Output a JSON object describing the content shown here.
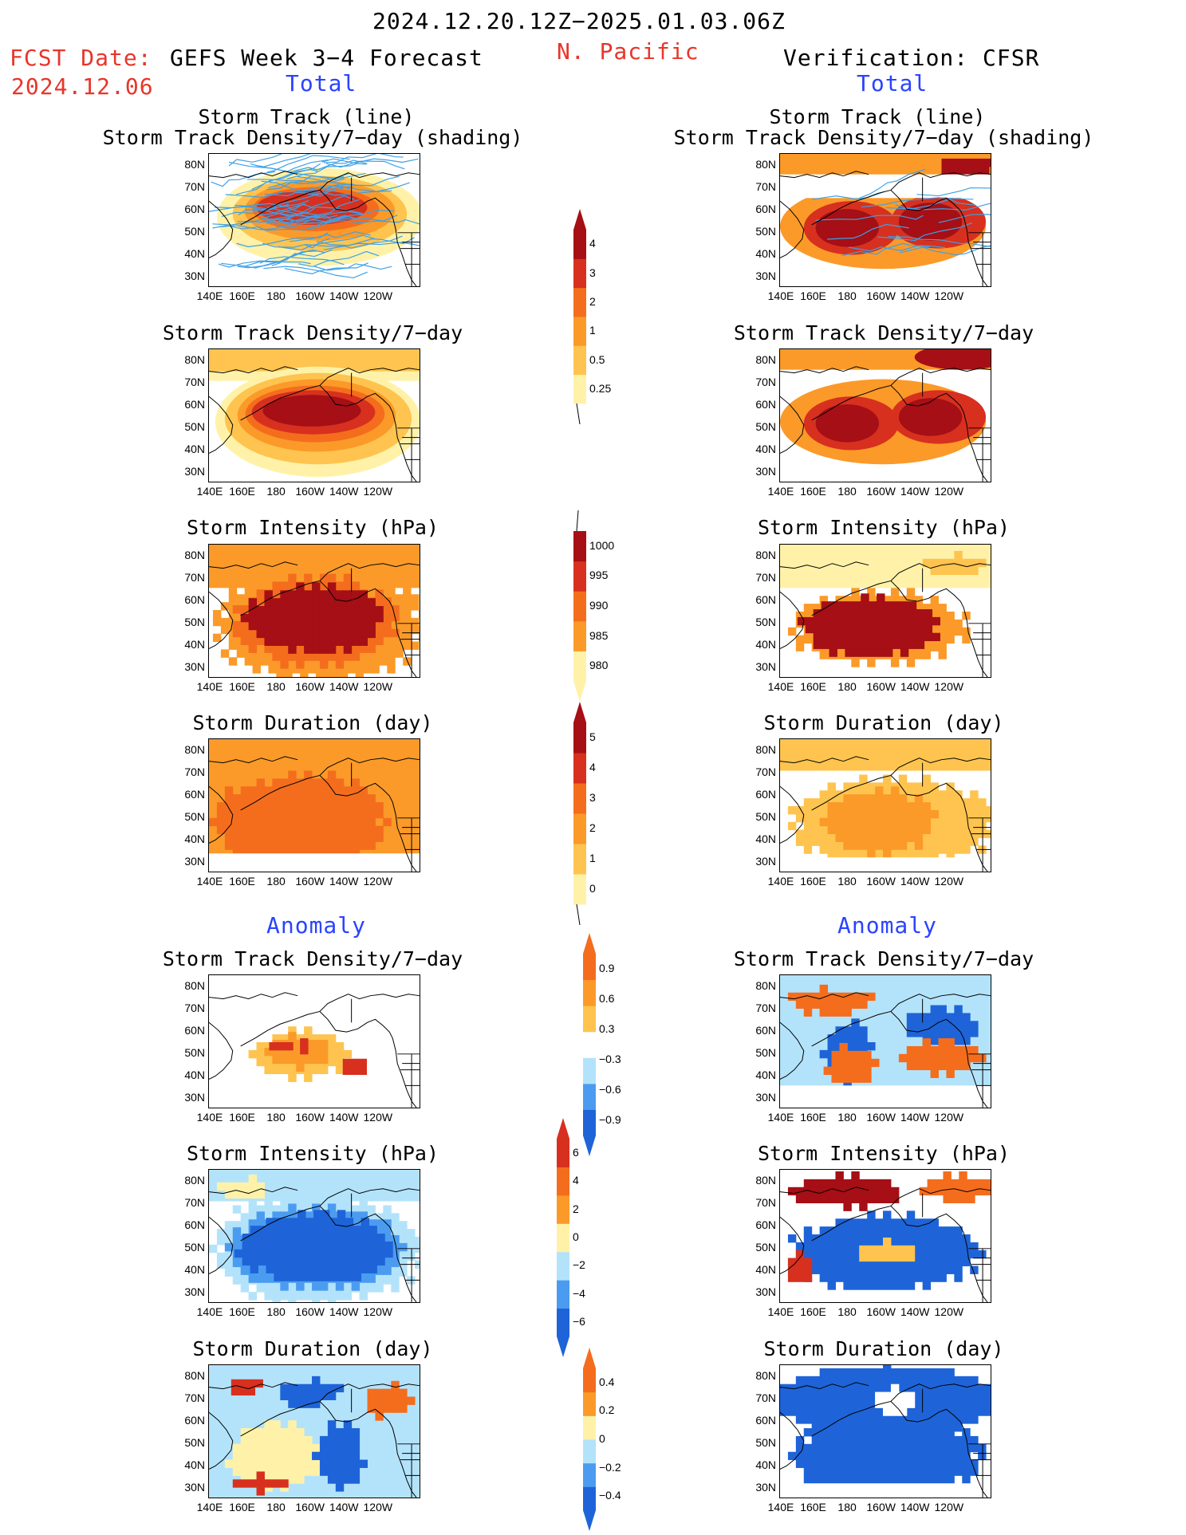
{
  "header": {
    "date_range": "2024.12.20.12Z−2025.01.03.06Z",
    "region": "N. Pacific",
    "fcst_label": "FCST Date:",
    "fcst_date": "2024.12.06",
    "left_title": "GEFS Week 3−4 Forecast",
    "right_title": "Verification: CFSR",
    "total_label": "Total",
    "anomaly_label": "Anomaly"
  },
  "axes": {
    "lat_labels": [
      "80N",
      "70N",
      "60N",
      "50N",
      "40N",
      "30N"
    ],
    "lon_labels": [
      "140E",
      "160E",
      "180",
      "160W",
      "140W",
      "120W"
    ]
  },
  "panels": {
    "track_shading_title_1": "Storm Track (line)",
    "track_shading_title_2": "Storm Track Density/7−day (shading)",
    "density_title": "Storm Track Density/7−day",
    "intensity_title": "Storm Intensity (hPa)",
    "duration_title": "Storm Duration (day)"
  },
  "colorbars": {
    "density_total": [
      "4",
      "3",
      "2",
      "1",
      "0.5",
      "0.25"
    ],
    "intensity_total": [
      "1000",
      "995",
      "990",
      "985",
      "980"
    ],
    "duration_total": [
      "5",
      "4",
      "3",
      "2",
      "1",
      "0"
    ],
    "density_anom": [
      "0.9",
      "0.6",
      "0.3",
      "−0.3",
      "−0.6",
      "−0.9"
    ],
    "intensity_anom": [
      "6",
      "4",
      "2",
      "0",
      "−2",
      "−4",
      "−6"
    ],
    "duration_anom": [
      "0.4",
      "0.2",
      "0",
      "−0.2",
      "−0.4"
    ]
  },
  "colors": {
    "dark_red": "#a50f15",
    "red": "#d7301f",
    "orange_red": "#f46d1d",
    "orange": "#fb9a29",
    "light_orange": "#fec44f",
    "pale_yellow": "#fff2a8",
    "light_blue": "#b3e3fb",
    "mid_blue": "#4b9cf0",
    "blue": "#1e64d8",
    "track_line": "#3ea0e6"
  }
}
